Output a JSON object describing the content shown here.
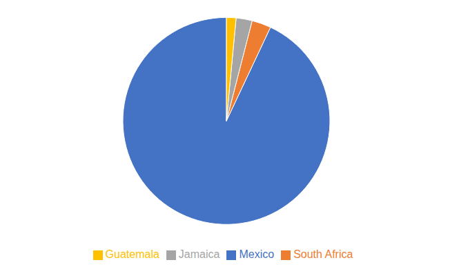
{
  "chart_data": {
    "type": "pie",
    "categories": [
      "Mexico",
      "South Africa",
      "Jamaica",
      "Guatemala"
    ],
    "values": [
      93.0,
      3.0,
      2.5,
      1.5
    ],
    "colors": [
      "#4472C4",
      "#ED7D31",
      "#A5A5A5",
      "#FFC000"
    ],
    "legend": "bottom"
  }
}
